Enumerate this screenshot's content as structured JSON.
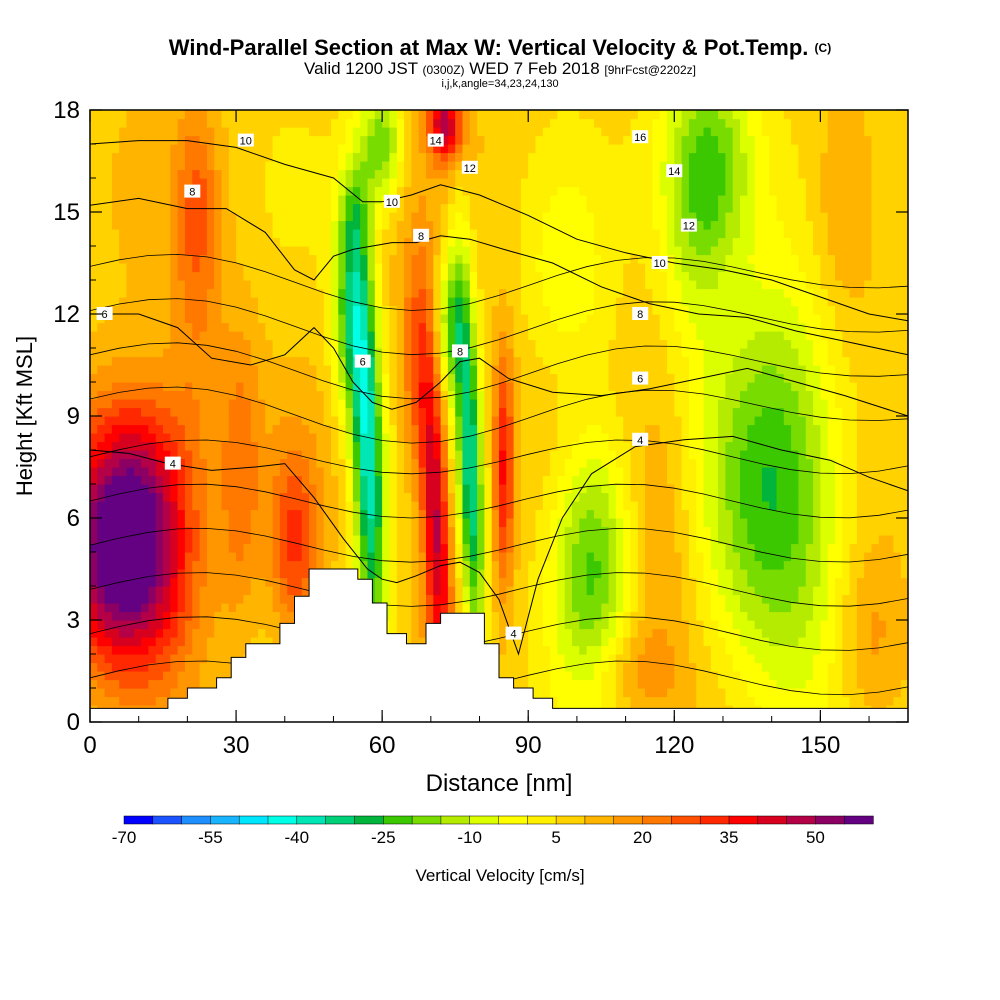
{
  "header": {
    "title": "Wind-Parallel Section at Max W: Vertical Velocity & Pot.Temp.",
    "copyright": "(C)",
    "valid_a": "Valid 1200 JST",
    "valid_b": "(0300Z)",
    "valid_c": "WED 7 Feb 2018",
    "valid_d": "[9hrFcst@2202z]",
    "indices": "i,j,k,angle=34,23,24,130"
  },
  "colors": {
    "vv_scale": [
      "#0000ff",
      "#1a53ff",
      "#1f8fff",
      "#19b4ff",
      "#00e6ff",
      "#00ffe6",
      "#00e6b4",
      "#00d078",
      "#00b43c",
      "#3cc800",
      "#78dc00",
      "#b4eb00",
      "#dcff00",
      "#ffff00",
      "#fff000",
      "#ffd200",
      "#ffb400",
      "#ff9600",
      "#ff7800",
      "#ff5000",
      "#ff2800",
      "#ff0000",
      "#d7001e",
      "#b40046",
      "#8c0064",
      "#640082"
    ],
    "terrain": "#ffffff",
    "contour": "#000000"
  },
  "chart_data": {
    "type": "heatmap",
    "xlabel": "Distance [nm]",
    "ylabel": "Height [Kft MSL]",
    "xlim": [
      0,
      168
    ],
    "ylim": [
      0,
      18
    ],
    "xticks": [
      0,
      30,
      60,
      90,
      120,
      150
    ],
    "yticks": [
      0,
      3,
      6,
      9,
      12,
      15,
      18
    ],
    "colorbar": {
      "label": "Vertical Velocity [cm/s]",
      "min": -70,
      "max": 60,
      "step": 5,
      "tick_labels": [
        -70,
        -55,
        -40,
        -25,
        -10,
        5,
        20,
        35,
        50
      ]
    },
    "terrain_profile": [
      [
        0,
        0.4
      ],
      [
        16,
        0.4
      ],
      [
        16,
        0.7
      ],
      [
        20,
        0.7
      ],
      [
        20,
        1.0
      ],
      [
        26,
        1.0
      ],
      [
        26,
        1.3
      ],
      [
        29,
        1.3
      ],
      [
        29,
        1.9
      ],
      [
        32,
        1.9
      ],
      [
        32,
        2.3
      ],
      [
        39,
        2.3
      ],
      [
        39,
        2.9
      ],
      [
        42,
        2.9
      ],
      [
        42,
        3.7
      ],
      [
        45,
        3.7
      ],
      [
        45,
        4.5
      ],
      [
        55,
        4.5
      ],
      [
        55,
        4.2
      ],
      [
        58,
        4.2
      ],
      [
        58,
        3.5
      ],
      [
        61,
        3.5
      ],
      [
        61,
        2.6
      ],
      [
        65,
        2.6
      ],
      [
        65,
        2.3
      ],
      [
        69,
        2.3
      ],
      [
        69,
        2.9
      ],
      [
        72,
        2.9
      ],
      [
        72,
        3.2
      ],
      [
        81,
        3.2
      ],
      [
        81,
        2.3
      ],
      [
        84,
        2.3
      ],
      [
        84,
        1.3
      ],
      [
        87,
        1.3
      ],
      [
        87,
        1.0
      ],
      [
        91,
        1.0
      ],
      [
        91,
        0.7
      ],
      [
        95,
        0.7
      ],
      [
        95,
        0.4
      ],
      [
        168,
        0.4
      ]
    ],
    "vv_features": [
      {
        "x": 7,
        "z": 4.6,
        "sx": 9,
        "sz": 2.2,
        "w": 52
      },
      {
        "x": 10,
        "z": 7.5,
        "sx": 8,
        "sz": 2.0,
        "w": 28
      },
      {
        "x": 42,
        "z": 5.2,
        "sx": 3.5,
        "sz": 2.0,
        "w": 22
      },
      {
        "x": 31,
        "z": 7.5,
        "sx": 3,
        "sz": 3,
        "w": 14
      },
      {
        "x": 22,
        "z": 12.0,
        "sx": 4,
        "sz": 3,
        "w": 10
      },
      {
        "x": 22,
        "z": 15.5,
        "sx": 3,
        "sz": 2,
        "w": 12
      },
      {
        "x": 57,
        "z": 8.2,
        "sx": 2.3,
        "sz": 4.5,
        "w": -48
      },
      {
        "x": 53,
        "z": 12.0,
        "sx": 2.5,
        "sz": 2.0,
        "w": -25
      },
      {
        "x": 54,
        "z": 15.0,
        "sx": 2.5,
        "sz": 1.0,
        "w": -12
      },
      {
        "x": 71,
        "z": 6.0,
        "sx": 2.0,
        "sz": 3.5,
        "w": 40
      },
      {
        "x": 67,
        "z": 10.5,
        "sx": 2.5,
        "sz": 2.5,
        "w": 18
      },
      {
        "x": 78,
        "z": 7.8,
        "sx": 1.8,
        "sz": 4.2,
        "w": -42
      },
      {
        "x": 74,
        "z": 11.8,
        "sx": 2.0,
        "sz": 1.5,
        "w": -25
      },
      {
        "x": 85,
        "z": 7.5,
        "sx": 1.6,
        "sz": 2.5,
        "w": 28
      },
      {
        "x": 60,
        "z": 17.0,
        "sx": 3,
        "sz": 1.2,
        "w": -28
      },
      {
        "x": 73,
        "z": 17.6,
        "sx": 2.5,
        "sz": 0.8,
        "w": 38
      },
      {
        "x": 103,
        "z": 4.7,
        "sx": 6,
        "sz": 2.8,
        "w": -30
      },
      {
        "x": 117,
        "z": 5.5,
        "sx": 5,
        "sz": 3.2,
        "w": 10
      },
      {
        "x": 141,
        "z": 6.8,
        "sx": 10,
        "sz": 4.2,
        "w": -33
      },
      {
        "x": 127,
        "z": 16.5,
        "sx": 7,
        "sz": 2.2,
        "w": -32
      },
      {
        "x": 124,
        "z": 13.5,
        "sx": 5,
        "sz": 2.0,
        "w": -10
      },
      {
        "x": 155,
        "z": 15.0,
        "sx": 5,
        "sz": 2.5,
        "w": 12
      },
      {
        "x": 160,
        "z": 2.5,
        "sx": 5,
        "sz": 2,
        "w": 12
      },
      {
        "x": 110,
        "z": 1.5,
        "sx": 6,
        "sz": 1,
        "w": 10
      },
      {
        "x": 98,
        "z": 13.0,
        "sx": 6,
        "sz": 2,
        "w": -10
      }
    ],
    "theta_contours": [
      {
        "label": "4",
        "points": [
          [
            0,
            8
          ],
          [
            8,
            7.9
          ],
          [
            16,
            7.6
          ],
          [
            25,
            7.4
          ],
          [
            34,
            7.5
          ],
          [
            40,
            7.6
          ],
          [
            46,
            6.6
          ],
          [
            52,
            5.4
          ],
          [
            57,
            4.5
          ],
          [
            60,
            4.2
          ],
          [
            63,
            4.1
          ],
          [
            67,
            4.3
          ],
          [
            72,
            4.6
          ],
          [
            76,
            4.7
          ],
          [
            80,
            4.4
          ],
          [
            84,
            3.6
          ],
          [
            86,
            2.8
          ],
          [
            88,
            2.0
          ],
          [
            92,
            4.2
          ],
          [
            97,
            6.0
          ],
          [
            103,
            7.3
          ],
          [
            112,
            8.1
          ],
          [
            122,
            8.3
          ],
          [
            132,
            8.4
          ],
          [
            142,
            8.0
          ],
          [
            152,
            7.7
          ],
          [
            160,
            7.2
          ],
          [
            168,
            6.8
          ]
        ],
        "label_at": [
          17,
          7.6
        ]
      },
      {
        "label": "6",
        "points": [
          [
            0,
            12
          ],
          [
            10,
            12.0
          ],
          [
            18,
            11.6
          ],
          [
            25,
            10.7
          ],
          [
            33,
            10.5
          ],
          [
            40,
            10.8
          ],
          [
            46,
            11.6
          ],
          [
            50,
            11.0
          ],
          [
            54,
            10.0
          ],
          [
            58,
            9.4
          ],
          [
            62,
            9.2
          ],
          [
            67,
            9.4
          ],
          [
            72,
            10.0
          ],
          [
            76,
            10.6
          ],
          [
            80,
            10.7
          ],
          [
            86,
            10.1
          ],
          [
            95,
            9.7
          ],
          [
            105,
            9.6
          ],
          [
            115,
            9.8
          ],
          [
            125,
            10.1
          ],
          [
            135,
            10.4
          ],
          [
            145,
            10.0
          ],
          [
            155,
            9.6
          ],
          [
            168,
            9.0
          ]
        ],
        "label_at": [
          55,
          10.6
        ]
      },
      {
        "label": "8",
        "points": [
          [
            0,
            15.2
          ],
          [
            10,
            15.4
          ],
          [
            20,
            15.1
          ],
          [
            28,
            15.1
          ],
          [
            36,
            14.4
          ],
          [
            42,
            13.3
          ],
          [
            46,
            13.0
          ],
          [
            50,
            13.7
          ],
          [
            54,
            13.9
          ],
          [
            58,
            14.0
          ],
          [
            62,
            14.1
          ],
          [
            67,
            14.1
          ],
          [
            72,
            14.3
          ],
          [
            78,
            14.2
          ],
          [
            85,
            13.9
          ],
          [
            95,
            13.5
          ],
          [
            105,
            12.8
          ],
          [
            115,
            12.3
          ],
          [
            125,
            12.0
          ],
          [
            135,
            11.9
          ],
          [
            145,
            11.5
          ],
          [
            155,
            11.2
          ],
          [
            168,
            10.8
          ]
        ],
        "label_at": [
          19,
          15.6
        ]
      },
      {
        "label": "10",
        "points": [
          [
            0,
            17.0
          ],
          [
            10,
            17.1
          ],
          [
            20,
            17.1
          ],
          [
            30,
            16.9
          ],
          [
            40,
            16.4
          ],
          [
            50,
            16.0
          ],
          [
            56,
            15.3
          ],
          [
            60,
            15.3
          ],
          [
            66,
            15.5
          ],
          [
            72,
            15.8
          ],
          [
            80,
            15.5
          ],
          [
            90,
            14.9
          ],
          [
            100,
            14.2
          ],
          [
            110,
            13.8
          ],
          [
            120,
            13.5
          ],
          [
            130,
            13.3
          ],
          [
            140,
            13.0
          ],
          [
            150,
            12.5
          ],
          [
            160,
            12.0
          ],
          [
            168,
            11.8
          ]
        ],
        "label_at": [
          33,
          17.1
        ]
      }
    ],
    "contour_labels": [
      {
        "text": "10",
        "x": 32,
        "y": 17.1
      },
      {
        "text": "8",
        "x": 21,
        "y": 15.6
      },
      {
        "text": "6",
        "x": 3,
        "y": 12.0
      },
      {
        "text": "4",
        "x": 17,
        "y": 7.6
      },
      {
        "text": "14",
        "x": 71,
        "y": 17.1
      },
      {
        "text": "12",
        "x": 78,
        "y": 16.3
      },
      {
        "text": "10",
        "x": 62,
        "y": 15.3
      },
      {
        "text": "8",
        "x": 68,
        "y": 14.3
      },
      {
        "text": "6",
        "x": 56,
        "y": 10.6
      },
      {
        "text": "8",
        "x": 76,
        "y": 10.9
      },
      {
        "text": "16",
        "x": 113,
        "y": 17.2
      },
      {
        "text": "14",
        "x": 120,
        "y": 16.2
      },
      {
        "text": "12",
        "x": 123,
        "y": 14.6
      },
      {
        "text": "10",
        "x": 117,
        "y": 13.5
      },
      {
        "text": "8",
        "x": 113,
        "y": 12.0
      },
      {
        "text": "6",
        "x": 113,
        "y": 10.1
      },
      {
        "text": "4",
        "x": 113,
        "y": 8.3
      },
      {
        "text": "4",
        "x": 87,
        "y": 2.6
      }
    ]
  }
}
